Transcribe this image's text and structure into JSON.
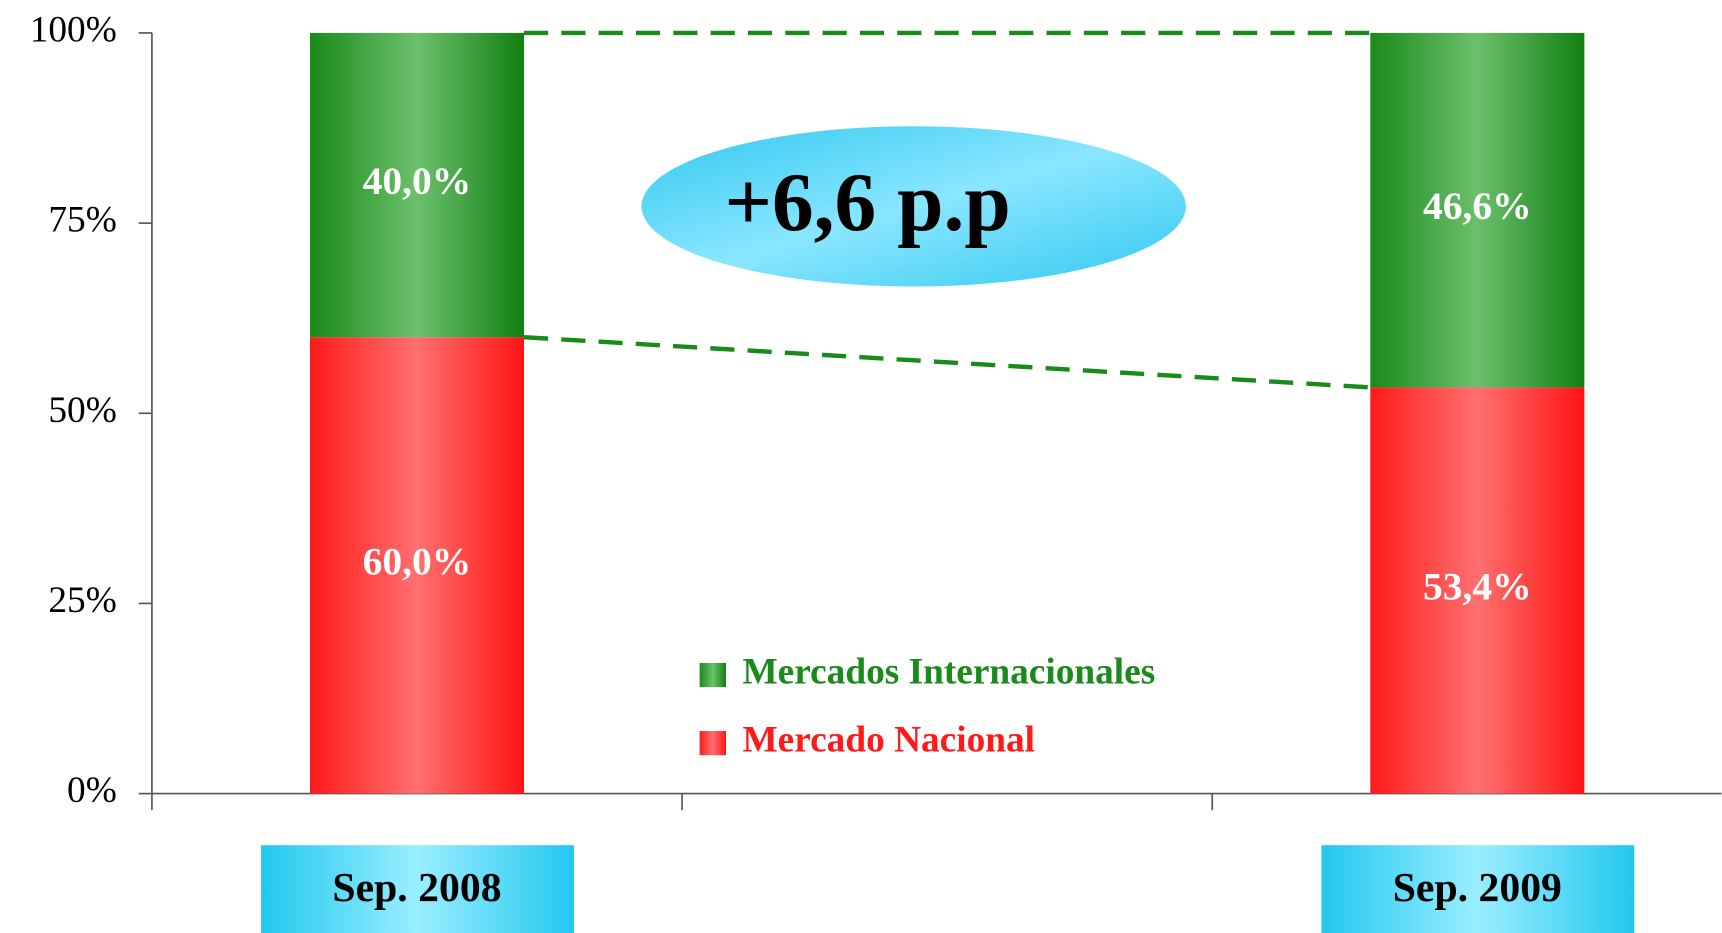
{
  "chart_data": {
    "type": "stacked_bar",
    "categories": [
      "Sep. 2008",
      null,
      "Sep. 2009"
    ],
    "series": [
      {
        "name": "Mercado Nacional",
        "color": "#ff1a1a",
        "values": [
          60,
          null,
          53.4
        ],
        "value_labels": [
          "60,0%",
          null,
          "53,4%"
        ]
      },
      {
        "name": "Mercados Internacionales",
        "color": "#1a8a1a",
        "values": [
          40,
          null,
          46.6
        ],
        "value_labels": [
          "40,0%",
          null,
          "46,6%"
        ]
      }
    ],
    "ylim": [
      0,
      100
    ],
    "yticks": [
      {
        "value": 0,
        "label": "0%"
      },
      {
        "value": 25,
        "label": "25%"
      },
      {
        "value": 50,
        "label": "50%"
      },
      {
        "value": 75,
        "label": "75%"
      },
      {
        "value": 100,
        "label": "100%"
      }
    ],
    "annotation": "+6,6 p.p"
  }
}
